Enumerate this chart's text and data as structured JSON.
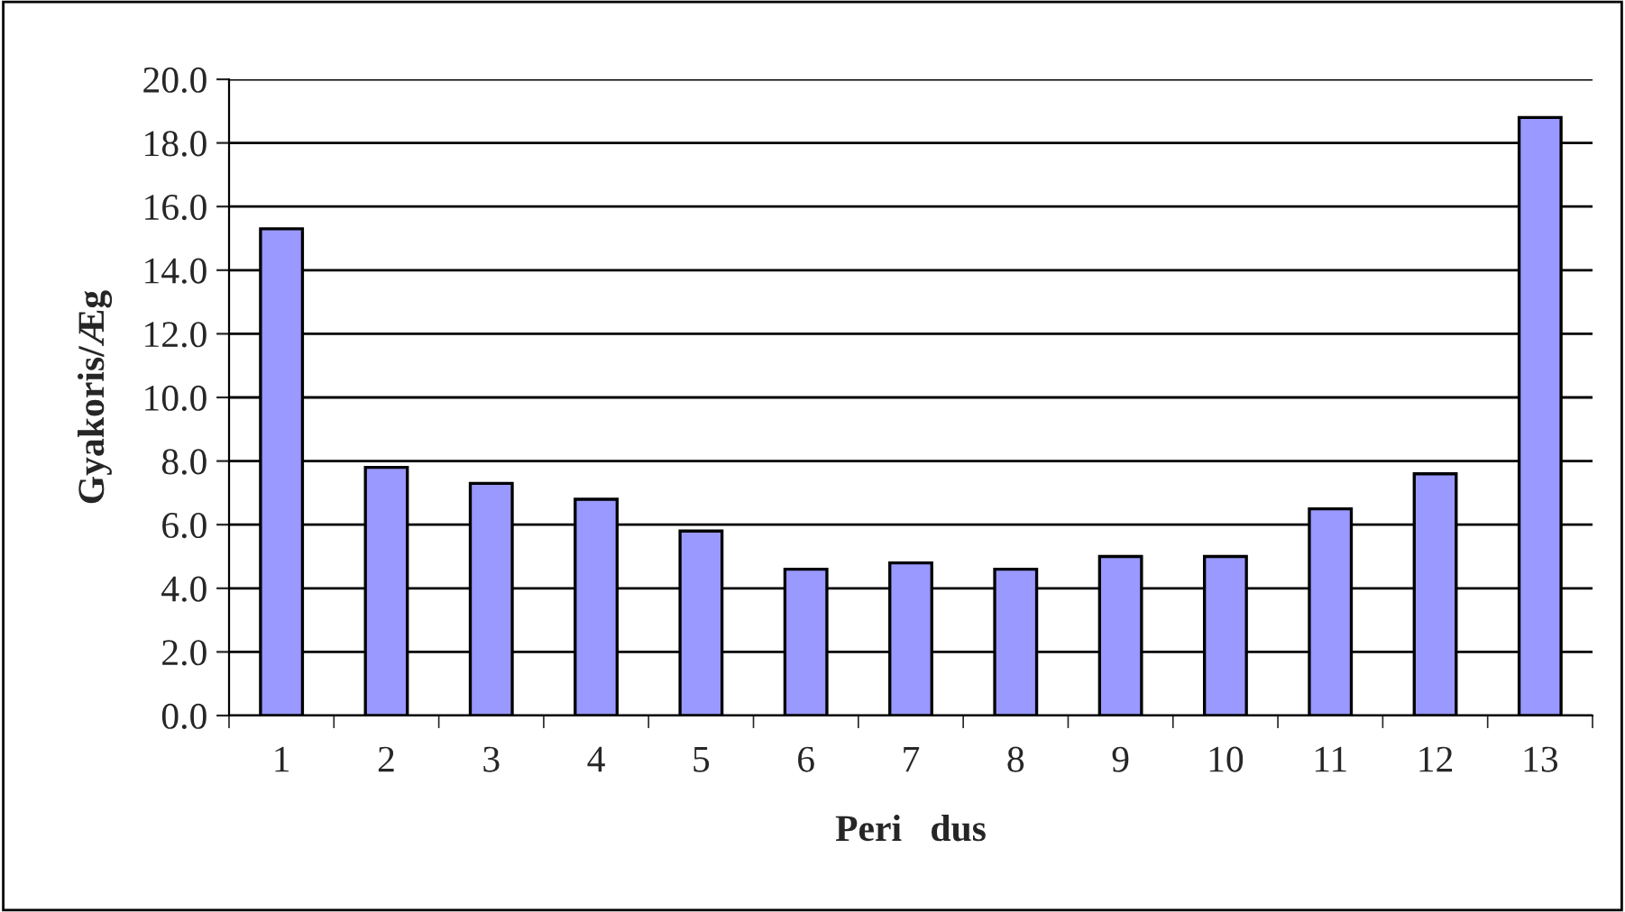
{
  "chart_data": {
    "type": "bar",
    "xlabel": "Peri   dus",
    "ylabel": "Gyakoris/Æg",
    "categories": [
      "1",
      "2",
      "3",
      "4",
      "5",
      "6",
      "7",
      "8",
      "9",
      "10",
      "11",
      "12",
      "13"
    ],
    "values": [
      15.3,
      7.8,
      7.3,
      6.8,
      5.8,
      4.6,
      4.8,
      4.6,
      5.0,
      5.0,
      6.5,
      7.6,
      18.8
    ],
    "color": "#9999ff",
    "ylim": [
      0,
      20
    ],
    "yticks": [
      {
        "value": 0,
        "label": "0.0"
      },
      {
        "value": 2,
        "label": "2.0"
      },
      {
        "value": 4,
        "label": "4.0"
      },
      {
        "value": 6,
        "label": "6.0"
      },
      {
        "value": 8,
        "label": "8.0"
      },
      {
        "value": 10,
        "label": "10.0"
      },
      {
        "value": 12,
        "label": "12.0"
      },
      {
        "value": 14,
        "label": "14.0"
      },
      {
        "value": 16,
        "label": "16.0"
      },
      {
        "value": 18,
        "label": "18.0"
      },
      {
        "value": 20,
        "label": "20.0"
      }
    ],
    "grid": "y",
    "legend": false
  }
}
